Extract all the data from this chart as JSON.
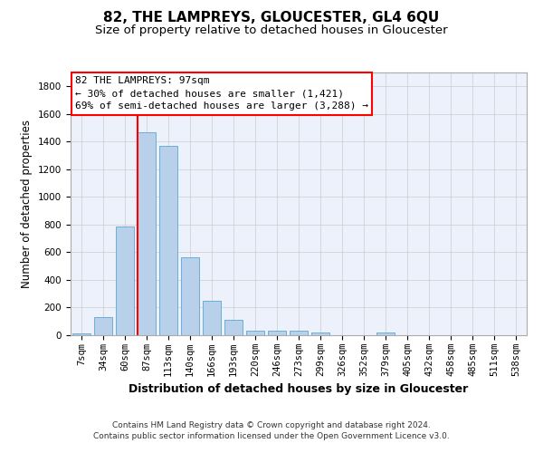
{
  "title": "82, THE LAMPREYS, GLOUCESTER, GL4 6QU",
  "subtitle": "Size of property relative to detached houses in Gloucester",
  "xlabel": "Distribution of detached houses by size in Gloucester",
  "ylabel": "Number of detached properties",
  "footer_line1": "Contains HM Land Registry data © Crown copyright and database right 2024.",
  "footer_line2": "Contains public sector information licensed under the Open Government Licence v3.0.",
  "bar_labels": [
    "7sqm",
    "34sqm",
    "60sqm",
    "87sqm",
    "113sqm",
    "140sqm",
    "166sqm",
    "193sqm",
    "220sqm",
    "246sqm",
    "273sqm",
    "299sqm",
    "326sqm",
    "352sqm",
    "379sqm",
    "405sqm",
    "432sqm",
    "458sqm",
    "485sqm",
    "511sqm",
    "538sqm"
  ],
  "bar_values": [
    15,
    130,
    785,
    1470,
    1370,
    565,
    250,
    110,
    35,
    30,
    30,
    20,
    0,
    0,
    20,
    0,
    0,
    0,
    0,
    0,
    0
  ],
  "bar_color": "#b8d0ea",
  "bar_edgecolor": "#6aaed6",
  "vline_bar_index": 3,
  "vline_color": "red",
  "annotation_text": "82 THE LAMPREYS: 97sqm\n← 30% of detached houses are smaller (1,421)\n69% of semi-detached houses are larger (3,288) →",
  "annotation_box_facecolor": "white",
  "annotation_box_edgecolor": "red",
  "ylim": [
    0,
    1900
  ],
  "yticks": [
    0,
    200,
    400,
    600,
    800,
    1000,
    1200,
    1400,
    1600,
    1800
  ],
  "background_color": "#edf1fb",
  "grid_color": "#cccccc",
  "title_fontsize": 11,
  "subtitle_fontsize": 9.5,
  "ylabel_fontsize": 8.5,
  "xlabel_fontsize": 9,
  "tick_fontsize": 7.5,
  "annotation_fontsize": 8,
  "footer_fontsize": 6.5
}
